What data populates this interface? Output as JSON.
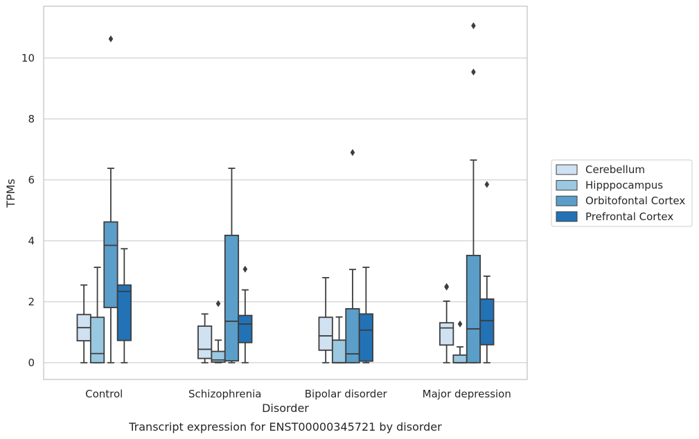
{
  "chart_data": {
    "type": "box",
    "xlabel": "Disorder",
    "ylabel": "TPMs",
    "caption": "Transcript expression for ENST00000345721 by disorder",
    "categories": [
      "Control",
      "Schizophrenia",
      "Bipolar disorder",
      "Major depression"
    ],
    "yticks": [
      0,
      2,
      4,
      6,
      8,
      10
    ],
    "ylim": [
      -0.55,
      11.7
    ],
    "grid": "horizontal",
    "legend_position": "right",
    "series": [
      {
        "name": "Cerebellum",
        "color": "#d0e1f2",
        "boxes": [
          {
            "whislo": 0.0,
            "q1": 0.72,
            "med": 1.15,
            "q3": 1.58,
            "whishi": 2.55,
            "fliers": []
          },
          {
            "whislo": 0.0,
            "q1": 0.14,
            "med": 0.44,
            "q3": 1.2,
            "whishi": 1.6,
            "fliers": []
          },
          {
            "whislo": 0.0,
            "q1": 0.41,
            "med": 0.88,
            "q3": 1.49,
            "whishi": 2.79,
            "fliers": []
          },
          {
            "whislo": 0.0,
            "q1": 0.58,
            "med": 1.14,
            "q3": 1.31,
            "whishi": 2.02,
            "fliers": [
              2.48,
              2.5
            ]
          }
        ]
      },
      {
        "name": "Hipppocampus",
        "color": "#9ac8e0",
        "boxes": [
          {
            "whislo": 0.0,
            "q1": 0.0,
            "med": 0.3,
            "q3": 1.49,
            "whishi": 3.13,
            "fliers": []
          },
          {
            "whislo": 0.0,
            "q1": 0.02,
            "med": 0.09,
            "q3": 0.37,
            "whishi": 0.74,
            "fliers": [
              1.94
            ]
          },
          {
            "whislo": 0.0,
            "q1": 0.0,
            "med": 0.0,
            "q3": 0.74,
            "whishi": 1.5,
            "fliers": []
          },
          {
            "whislo": 0.0,
            "q1": 0.0,
            "med": 0.0,
            "q3": 0.25,
            "whishi": 0.52,
            "fliers": [
              1.27
            ]
          }
        ]
      },
      {
        "name": "Orbitofontal Cortex",
        "color": "#5a9ec9",
        "boxes": [
          {
            "whislo": 0.0,
            "q1": 1.81,
            "med": 3.85,
            "q3": 4.62,
            "whishi": 6.38,
            "fliers": [
              10.63
            ]
          },
          {
            "whislo": 0.0,
            "q1": 0.06,
            "med": 1.36,
            "q3": 4.18,
            "whishi": 6.38,
            "fliers": []
          },
          {
            "whislo": 0.0,
            "q1": 0.0,
            "med": 0.29,
            "q3": 1.77,
            "whishi": 3.06,
            "fliers": [
              6.9
            ]
          },
          {
            "whislo": 0.0,
            "q1": 0.0,
            "med": 1.11,
            "q3": 3.52,
            "whishi": 6.65,
            "fliers": [
              9.54,
              11.06
            ]
          }
        ]
      },
      {
        "name": "Prefrontal Cortex",
        "color": "#2272b5",
        "boxes": [
          {
            "whislo": 0.0,
            "q1": 0.73,
            "med": 2.34,
            "q3": 2.55,
            "whishi": 3.74,
            "fliers": []
          },
          {
            "whislo": 0.0,
            "q1": 0.66,
            "med": 1.27,
            "q3": 1.55,
            "whishi": 2.39,
            "fliers": [
              3.07
            ]
          },
          {
            "whislo": 0.0,
            "q1": 0.05,
            "med": 1.07,
            "q3": 1.6,
            "whishi": 3.13,
            "fliers": []
          },
          {
            "whislo": 0.0,
            "q1": 0.59,
            "med": 1.38,
            "q3": 2.09,
            "whishi": 2.84,
            "fliers": [
              5.85
            ]
          }
        ]
      }
    ]
  }
}
